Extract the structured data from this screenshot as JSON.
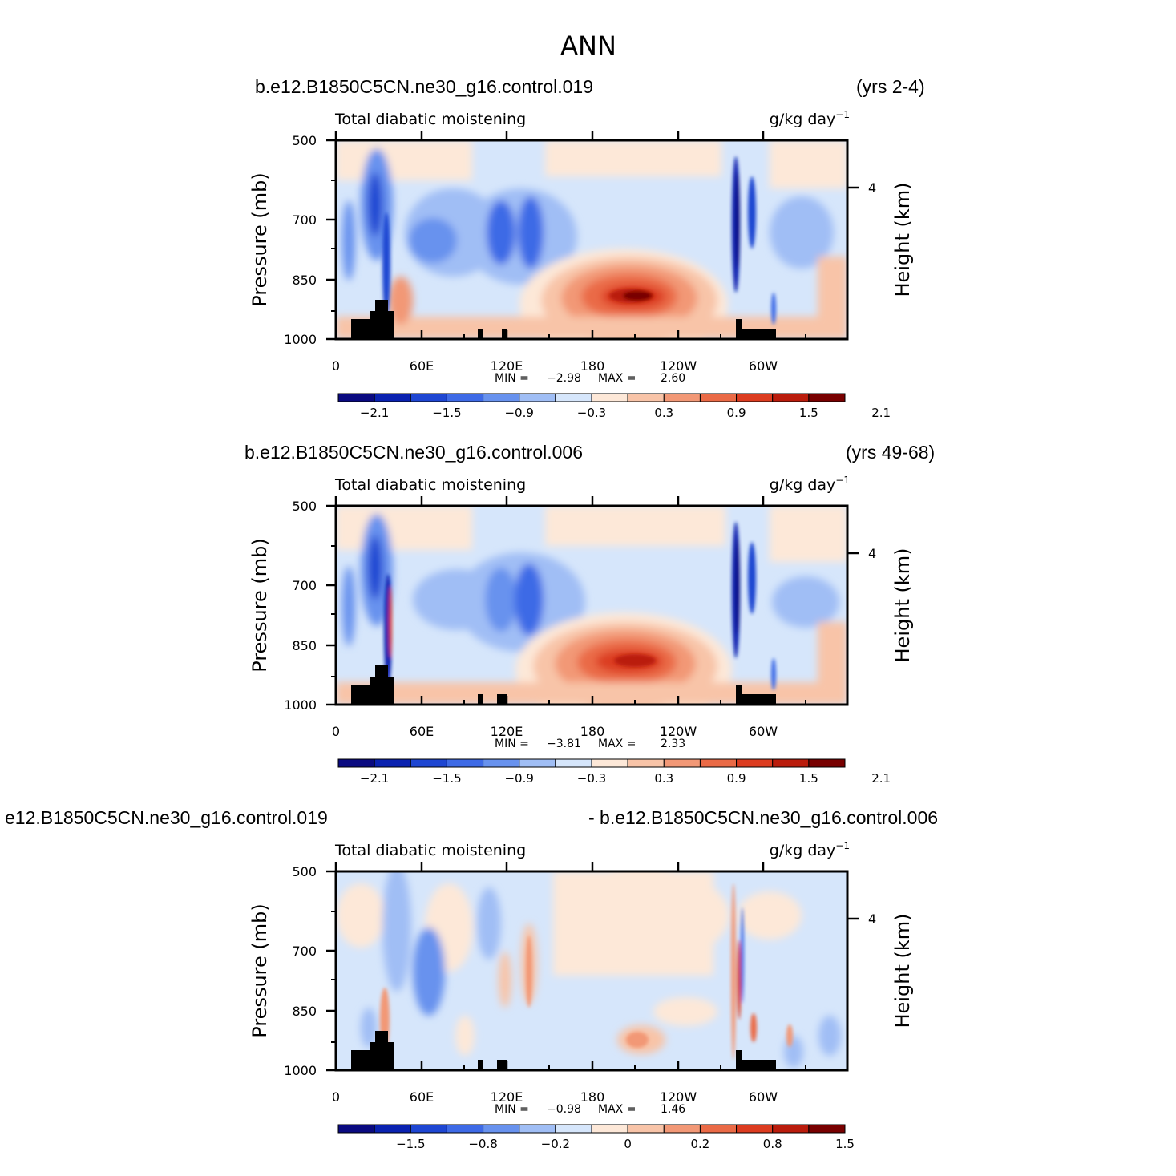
{
  "title": "ANN",
  "chart_data": [
    {
      "type": "heatmap",
      "case": "b.e12.B1850C5CN.ne30_g16.control.019",
      "years": "(yrs 2-4)",
      "variable": "Total diabatic moistening",
      "units": "g/kg day",
      "units_exponent": "−1",
      "ylabel": "Pressure (mb)",
      "ylabel_right": "Height (km)",
      "x_ticks": [
        "0",
        "60E",
        "120E",
        "180",
        "120W",
        "60W"
      ],
      "y_ticks": [
        "500",
        "700",
        "850",
        "1000"
      ],
      "right_ticks": [
        "4"
      ],
      "stats": {
        "min_label": "MIN =",
        "min": "−2.98",
        "max_label": "MAX =",
        "max": "2.60"
      },
      "colorbar_labels": [
        "−2.1",
        "−1.5",
        "−0.9",
        "−0.3",
        "0.3",
        "0.9",
        "1.5",
        "2.1"
      ],
      "colorbar_colors": [
        "#0a0a80",
        "#0a22b0",
        "#1e46d2",
        "#3e6ae6",
        "#6892ee",
        "#a0bef5",
        "#d6e6fb",
        "#fde8d8",
        "#f8c4a8",
        "#f29876",
        "#ea6a46",
        "#dc3c20",
        "#ba1c0c",
        "#780000"
      ],
      "min": -2.98,
      "max": 2.6
    },
    {
      "type": "heatmap",
      "case": "b.e12.B1850C5CN.ne30_g16.control.006",
      "years": "(yrs 49-68)",
      "variable": "Total diabatic moistening",
      "units": "g/kg day",
      "units_exponent": "−1",
      "ylabel": "Pressure (mb)",
      "ylabel_right": "Height (km)",
      "x_ticks": [
        "0",
        "60E",
        "120E",
        "180",
        "120W",
        "60W"
      ],
      "y_ticks": [
        "500",
        "700",
        "850",
        "1000"
      ],
      "right_ticks": [
        "4"
      ],
      "stats": {
        "min_label": "MIN =",
        "min": "−3.81",
        "max_label": "MAX =",
        "max": "2.33"
      },
      "colorbar_labels": [
        "−2.1",
        "−1.5",
        "−0.9",
        "−0.3",
        "0.3",
        "0.9",
        "1.5",
        "2.1"
      ],
      "colorbar_colors": [
        "#0a0a80",
        "#0a22b0",
        "#1e46d2",
        "#3e6ae6",
        "#6892ee",
        "#a0bef5",
        "#d6e6fb",
        "#fde8d8",
        "#f8c4a8",
        "#f29876",
        "#ea6a46",
        "#dc3c20",
        "#ba1c0c",
        "#780000"
      ],
      "min": -3.81,
      "max": 2.33
    },
    {
      "type": "heatmap",
      "case": "e12.B1850C5CN.ne30_g16.control.019",
      "case_right": "- b.e12.B1850C5CN.ne30_g16.control.006",
      "variable": "Total diabatic moistening",
      "units": "g/kg day",
      "units_exponent": "−1",
      "ylabel": "Pressure (mb)",
      "ylabel_right": "Height (km)",
      "x_ticks": [
        "0",
        "60E",
        "120E",
        "180",
        "120W",
        "60W"
      ],
      "y_ticks": [
        "500",
        "700",
        "850",
        "1000"
      ],
      "right_ticks": [
        "4"
      ],
      "stats": {
        "min_label": "MIN =",
        "min": "−0.98",
        "max_label": "MAX =",
        "max": "1.46"
      },
      "colorbar_labels": [
        "−1.5",
        "−0.8",
        "−0.2",
        "0",
        "0.2",
        "0.8",
        "1.5"
      ],
      "colorbar_colors": [
        "#0a0a80",
        "#0a22b0",
        "#1e46d2",
        "#3e6ae6",
        "#6892ee",
        "#a0bef5",
        "#d6e6fb",
        "#fde8d8",
        "#f8c4a8",
        "#f29876",
        "#ea6a46",
        "#dc3c20",
        "#ba1c0c",
        "#780000"
      ],
      "min": -0.98,
      "max": 1.46
    }
  ]
}
